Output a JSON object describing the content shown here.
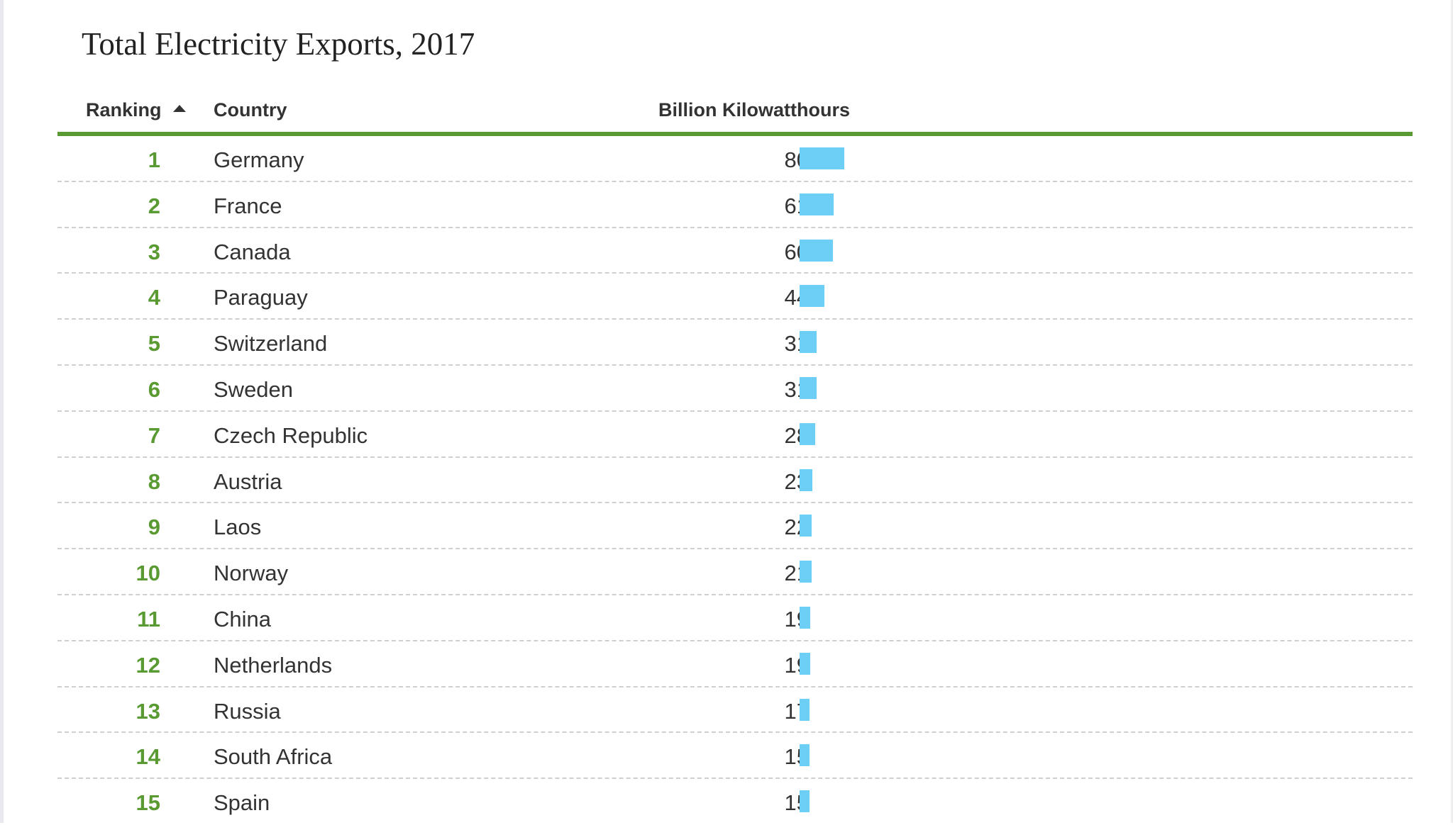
{
  "title": "Total Electricity Exports, 2017",
  "columns": {
    "rank": "Ranking",
    "country": "Country",
    "value": "Billion Kilowatthours"
  },
  "icons": {
    "sort": "sort-ascending-arrow-icon"
  },
  "colors": {
    "accent": "#5a9a32",
    "bar": "#6dcff6"
  },
  "rows": [
    {
      "rank": "1",
      "country": "Germany",
      "value": "80"
    },
    {
      "rank": "2",
      "country": "France",
      "value": "61"
    },
    {
      "rank": "3",
      "country": "Canada",
      "value": "60"
    },
    {
      "rank": "4",
      "country": "Paraguay",
      "value": "44"
    },
    {
      "rank": "5",
      "country": "Switzerland",
      "value": "31"
    },
    {
      "rank": "6",
      "country": "Sweden",
      "value": "31"
    },
    {
      "rank": "7",
      "country": "Czech Republic",
      "value": "28"
    },
    {
      "rank": "8",
      "country": "Austria",
      "value": "23"
    },
    {
      "rank": "9",
      "country": "Laos",
      "value": "22"
    },
    {
      "rank": "10",
      "country": "Norway",
      "value": "21"
    },
    {
      "rank": "11",
      "country": "China",
      "value": "19"
    },
    {
      "rank": "12",
      "country": "Netherlands",
      "value": "19"
    },
    {
      "rank": "13",
      "country": "Russia",
      "value": "17"
    },
    {
      "rank": "14",
      "country": "South Africa",
      "value": "15"
    },
    {
      "rank": "15",
      "country": "Spain",
      "value": "15"
    }
  ],
  "chart_data": {
    "type": "bar",
    "title": "Total Electricity Exports, 2017",
    "ylabel": "Billion Kilowatthours",
    "categories": [
      "Germany",
      "France",
      "Canada",
      "Paraguay",
      "Switzerland",
      "Sweden",
      "Czech Republic",
      "Austria",
      "Laos",
      "Norway",
      "China",
      "Netherlands",
      "Russia",
      "South Africa",
      "Spain"
    ],
    "values": [
      80,
      61,
      60,
      44,
      31,
      31,
      28,
      23,
      22,
      21,
      19,
      19,
      17,
      15,
      15
    ],
    "orientation": "horizontal",
    "grid": false
  }
}
